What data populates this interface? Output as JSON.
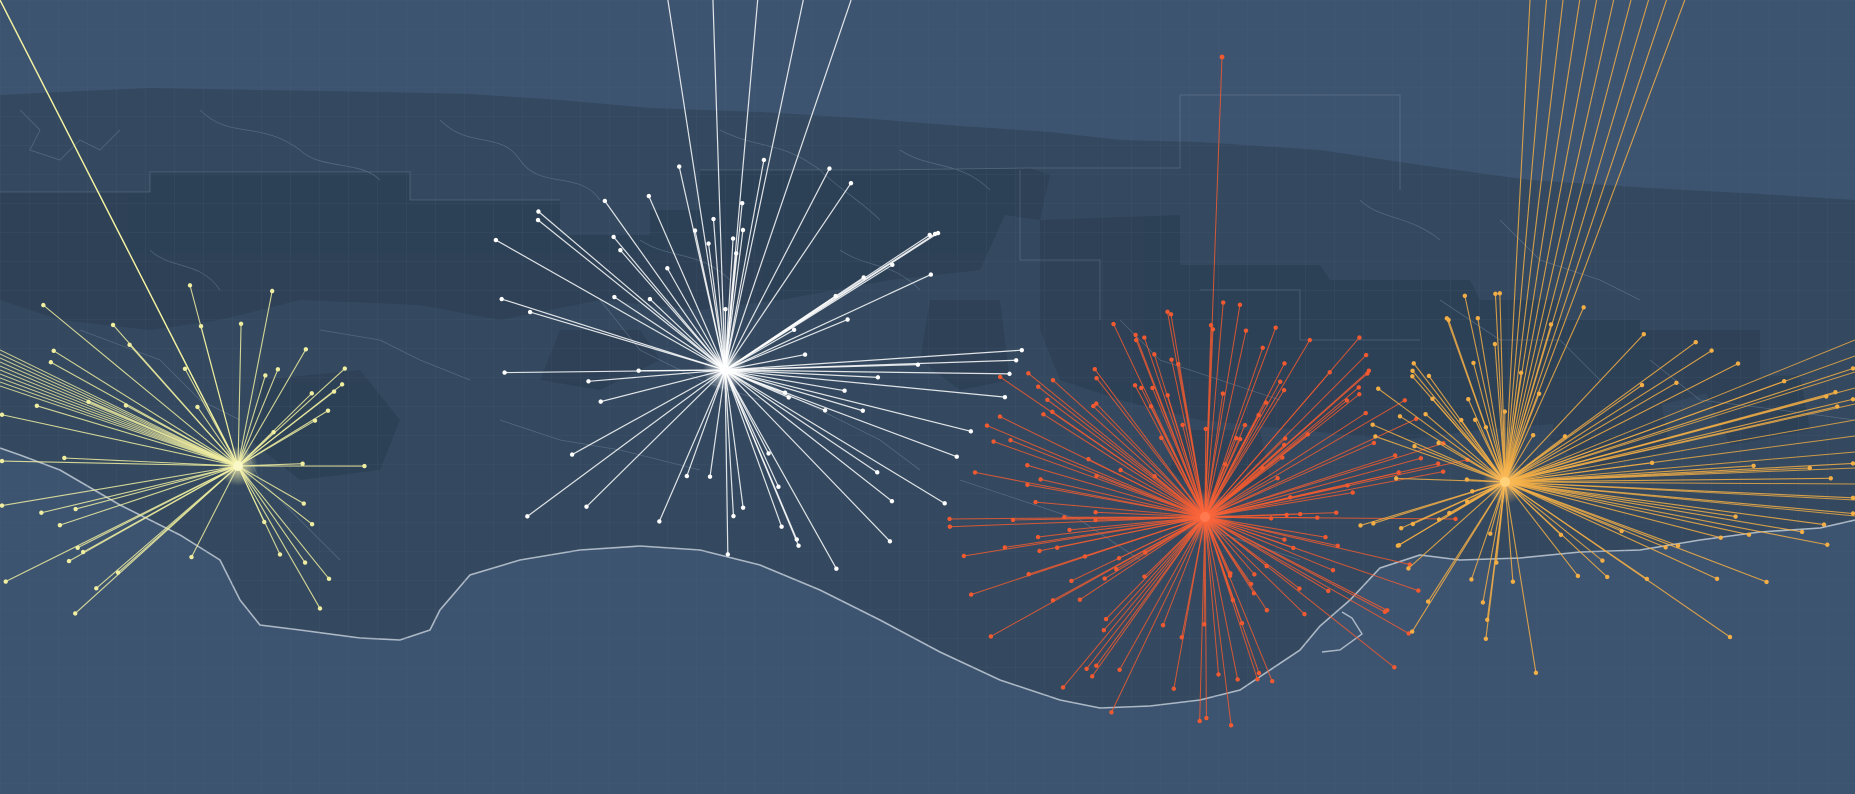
{
  "map": {
    "background_color": "#3d5470",
    "land_color": "#34495f",
    "parcel_fill_color": "#2f4358",
    "boundary_color": "#8ea3b8",
    "coastline_color": "#c9d3dd",
    "ocean_color": "#3d5470",
    "grid": true,
    "grid_color": "#4a6180",
    "labels": "none"
  },
  "clusters": [
    {
      "id": "west",
      "color": "#f0eea0",
      "spoke_count": 48,
      "offmap_count": 8,
      "spread": "radial-left"
    },
    {
      "id": "west-central",
      "color": "#ffffff",
      "spoke_count": 70,
      "offmap_count": 5,
      "spread": "radial-up"
    },
    {
      "id": "central",
      "color": "#f15a30",
      "spoke_count": 160,
      "offmap_count": 1,
      "spread": "radial-dense"
    },
    {
      "id": "east",
      "color": "#f3ae45",
      "spoke_count": 90,
      "offmap_count": 10,
      "spread": "radial-right"
    }
  ]
}
